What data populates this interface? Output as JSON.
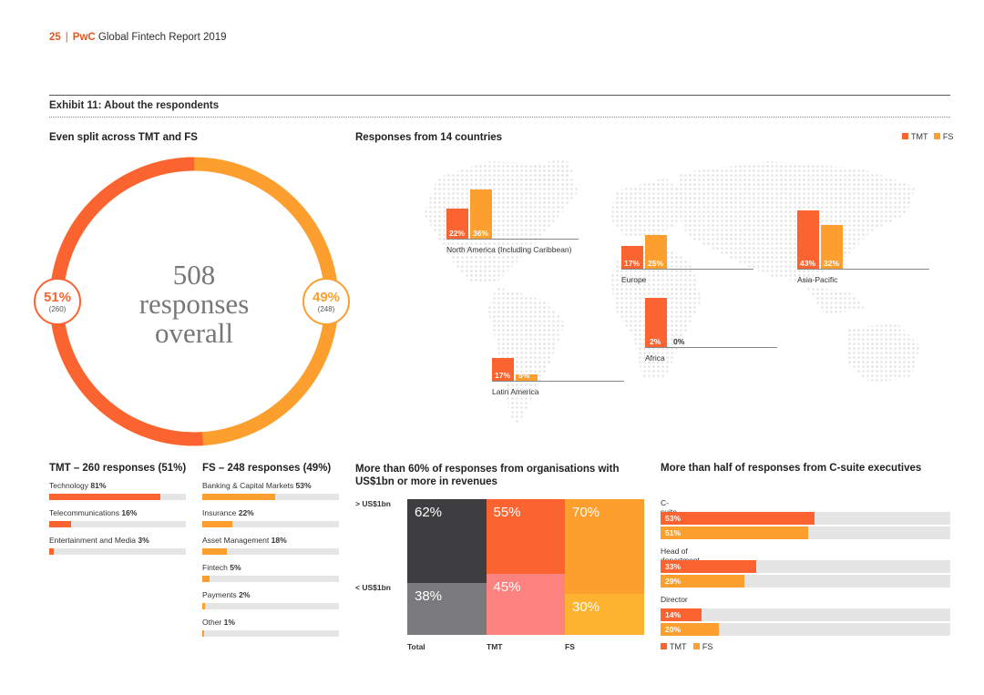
{
  "header": {
    "page_number": "25",
    "separator": "|",
    "brand": "PwC",
    "title": "Global Fintech Report 2019"
  },
  "exhibit_title": "Exhibit 11: About the respondents",
  "legend": {
    "tmt": "TMT",
    "fs": "FS"
  },
  "colors": {
    "tmt": "#fb6431",
    "fs": "#fd9f2f",
    "total_top": "#3e3e40",
    "total_bottom": "#7a7a7c",
    "tmt_bottom": "#fc8280",
    "fs_bottom": "#fdb32f"
  },
  "split": {
    "title": "Even split across TMT and FS",
    "center_line1": "508",
    "center_line2": "responses",
    "center_line3": "overall",
    "tmt_pct": "51%",
    "tmt_count": "(260)",
    "fs_pct": "49%",
    "fs_count": "(248)"
  },
  "countries": {
    "title": "Responses from 14 countries",
    "regions": [
      {
        "name": "North America (Including Caribbean)",
        "tmt": 22,
        "fs": 36,
        "tmt_label": "22%",
        "fs_label": "36%"
      },
      {
        "name": "Europe",
        "tmt": 17,
        "fs": 25,
        "tmt_label": "17%",
        "fs_label": "25%"
      },
      {
        "name": "Asia-Pacific",
        "tmt": 43,
        "fs": 32,
        "tmt_label": "43%",
        "fs_label": "32%"
      },
      {
        "name": "Africa",
        "tmt": 2,
        "fs": 0,
        "tmt_label": "2%",
        "fs_label": "0%"
      },
      {
        "name": "Latin America",
        "tmt": 17,
        "fs": 5,
        "tmt_label": "17%",
        "fs_label": "5%"
      }
    ]
  },
  "tmt_list": {
    "title": "TMT – 260 responses (51%)",
    "items": [
      {
        "label": "Technology",
        "value_label": "81%",
        "value": 81
      },
      {
        "label": "Telecommunications",
        "value_label": "16%",
        "value": 16
      },
      {
        "label": "Entertainment and Media",
        "value_label": "3%",
        "value": 3
      }
    ]
  },
  "fs_list": {
    "title": "FS – 248 responses (49%)",
    "items": [
      {
        "label": "Banking & Capital Markets",
        "value_label": "53%",
        "value": 53
      },
      {
        "label": "Insurance",
        "value_label": "22%",
        "value": 22
      },
      {
        "label": "Asset Management",
        "value_label": "18%",
        "value": 18
      },
      {
        "label": "Fintech",
        "value_label": "5%",
        "value": 5
      },
      {
        "label": "Payments",
        "value_label": "2%",
        "value": 2
      },
      {
        "label": "Other",
        "value_label": "1%",
        "value": 1
      }
    ]
  },
  "revenue": {
    "title_line1": "More than 60% of responses from organisations with",
    "title_line2": "US$1bn or more in revenues",
    "row_over": "> US$1bn",
    "row_under": "< US$1bn",
    "columns": [
      {
        "name": "Total",
        "over": 62,
        "under": 38,
        "over_label": "62%",
        "under_label": "38%"
      },
      {
        "name": "TMT",
        "over": 55,
        "under": 45,
        "over_label": "55%",
        "under_label": "45%"
      },
      {
        "name": "FS",
        "over": 70,
        "under": 30,
        "over_label": "70%",
        "under_label": "30%"
      }
    ]
  },
  "csuite": {
    "title": "More than half of responses from C-suite executives",
    "groups": [
      {
        "name": "C-suite",
        "tmt": 53,
        "fs": 51,
        "tmt_label": "53%",
        "fs_label": "51%"
      },
      {
        "name": "Head of department",
        "tmt": 33,
        "fs": 29,
        "tmt_label": "33%",
        "fs_label": "29%"
      },
      {
        "name": "Director",
        "tmt": 14,
        "fs": 20,
        "tmt_label": "14%",
        "fs_label": "20%"
      }
    ],
    "legend_tmt": "TMT",
    "legend_fs": "FS"
  }
}
